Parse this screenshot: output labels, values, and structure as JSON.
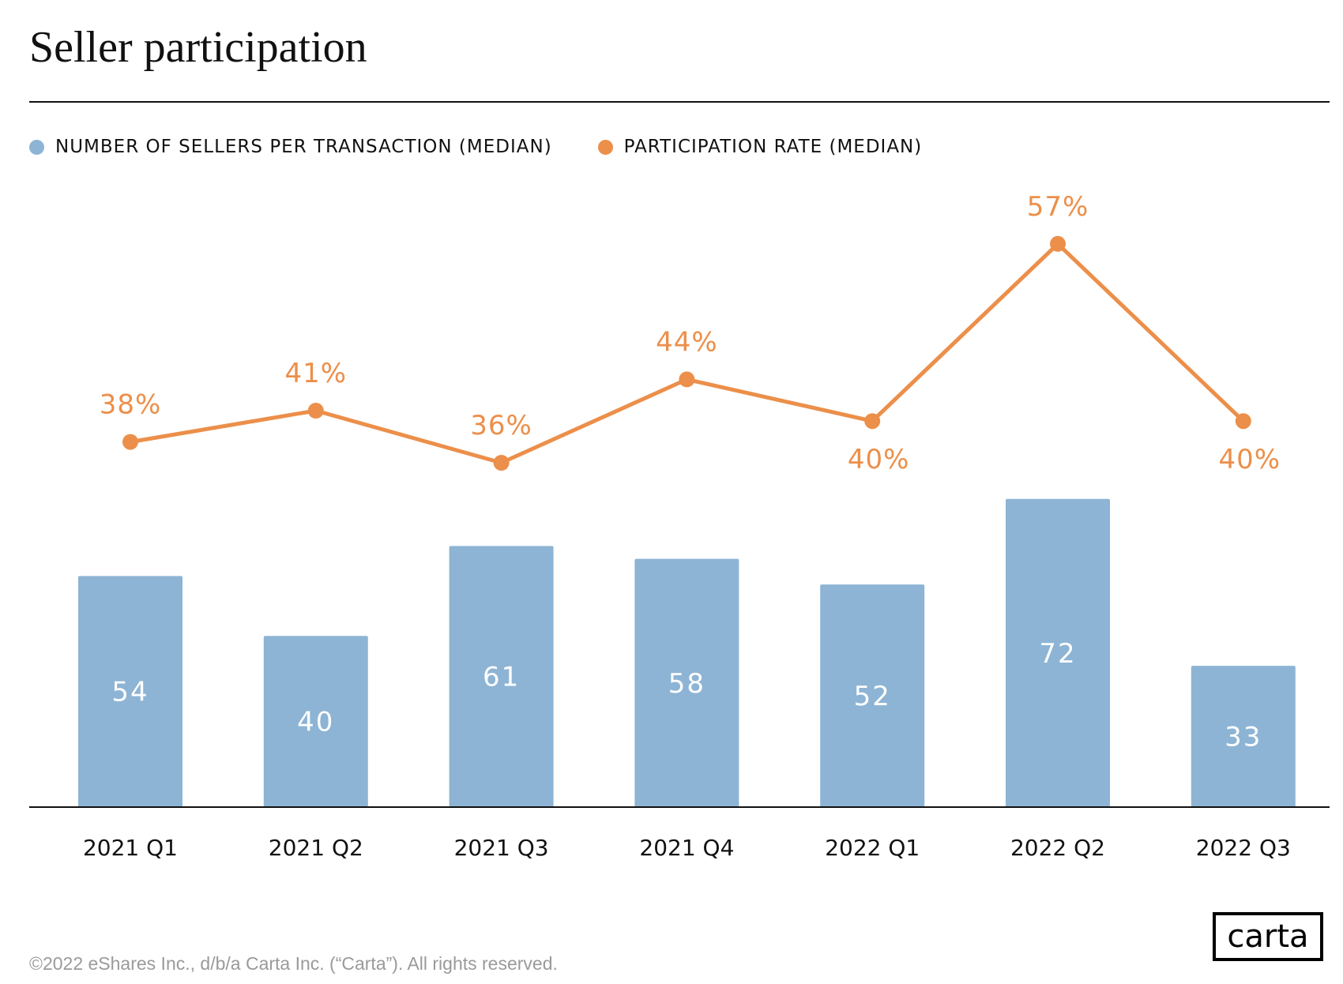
{
  "chart_data": {
    "type": "bar+line",
    "title": "Seller participation",
    "categories": [
      "2021 Q1",
      "2021 Q2",
      "2021 Q3",
      "2021 Q4",
      "2022 Q1",
      "2022 Q2",
      "2022 Q3"
    ],
    "series": [
      {
        "name": "NUMBER OF SELLERS PER TRANSACTION (MEDIAN)",
        "type": "bar",
        "color": "#8db4d4",
        "values": [
          54,
          40,
          61,
          58,
          52,
          72,
          33
        ],
        "labels": [
          "54",
          "40",
          "61",
          "58",
          "52",
          "72",
          "33"
        ]
      },
      {
        "name": "PARTICIPATION RATE (MEDIAN)",
        "type": "line",
        "color": "#ec8f4a",
        "values": [
          38,
          41,
          36,
          44,
          40,
          57,
          40
        ],
        "labels": [
          "38%",
          "41%",
          "36%",
          "44%",
          "40%",
          "57%",
          "40%"
        ],
        "label_placement": [
          "above",
          "above",
          "above",
          "above",
          "below",
          "above",
          "below"
        ]
      }
    ],
    "legend": "top-left",
    "grid": false
  },
  "footer": "©2022 eShares Inc., d/b/a Carta Inc. (“Carta”). All rights reserved.",
  "logo": "carta"
}
